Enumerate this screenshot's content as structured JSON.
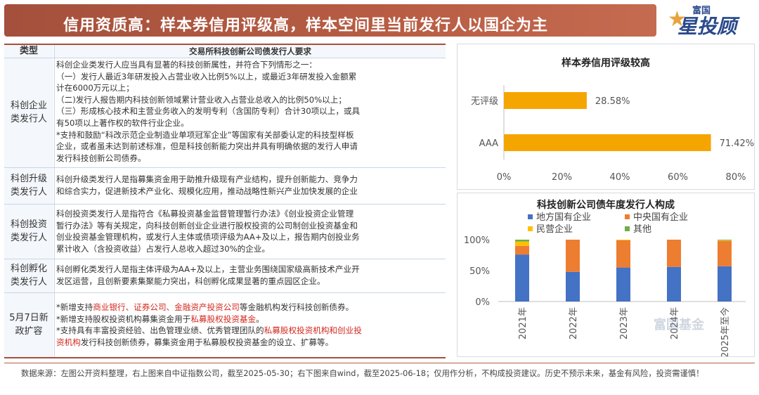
{
  "header": {
    "title": "信用资质高：样本券信用评级高，样本空间里当前发行人以国企为主"
  },
  "logo": {
    "small": "富国",
    "big": "星投顾"
  },
  "table": {
    "col_type": "类型",
    "col_req": "交易所科技创新公司债发行人要求",
    "rows": [
      {
        "type": "科创企业类发行人",
        "lines": [
          "科创企业类发行人应当具有显著的科技创新属性，并符合下列情形之一：",
          "（一）发行人最近3年研发投入占营业收入比例5%以上，或最近3年研发投入金额累",
          "计在6000万元以上；",
          "（二)发行人报告期内科技创新领域累计营业收入占营业总收入的比例50%以上；",
          "（三）形成核心技术和主营业务收入的发明专利（含国防专利）合计30项以上，或具",
          "有50项以上著作权的软件行业企业。",
          "*支持和鼓励“科改示范企业制造业单项冠军企业”等国家有关部委认定的科技型样板",
          "企业，或者虽未达到前述标准，但是科技创新能力突出并具有明确依据的发行人申请",
          "发行科技创新公司债券。"
        ]
      },
      {
        "type": "科创升级类发行人",
        "lines": [
          "科创升级类发行人是指募集资金用于助推升级现有产业结构，提升创新能力、竞争力",
          "和综合实力，促进新技术产业化、规模化应用，推动战略性新兴产业加快发展的企业"
        ]
      },
      {
        "type": "科创投资类发行人",
        "lines": [
          "科创投资类发行人是指符合《私募投资基金监督管理暂行办法》《创业投资企业管理",
          "暂行办法》等有关规定，向科技创新创业企业进行股权投资的公司制创业投资基金和",
          "创业投资基金管理机构，或发行人主体或债项评级为AA+及以上，报告期内创投业务",
          "累计收入（含投资收益）占发行人总收入超过30%的企业。"
        ]
      },
      {
        "type": "科创孵化类发行人",
        "lines": [
          "科创孵化类发行人是指主体评级为AA+及以上，主营业务围绕国家级高新技术产业开",
          "发区运营，且创新要素集聚能力突出，科创孵化成果显著的重点园区企业。"
        ]
      }
    ],
    "policy": {
      "type": "5月7日新政扩容",
      "l1_a": "*新增支持",
      "l1_red": "商业银行、证券公司、金融资产投资公司",
      "l1_b": "等金融机构发行科技创新债券。",
      "l2_a": "*新增支持股权投资机构募集资金用于",
      "l2_red": "私募股权投资基金",
      "l2_b": "。",
      "l3_a": "*支持具有丰富投资经验、出色管理业绩、优秀管理团队的",
      "l3_red1": "私募股权投资机构和创业投",
      "l4_red": "资机构",
      "l4_b": "发行科技创新债券，募集资金用于私募股权投资基金的设立、扩募等。"
    }
  },
  "chart_data": [
    {
      "type": "bar",
      "orientation": "horizontal",
      "title": "样本券信用评级较高",
      "categories": [
        "无评级",
        "AAA"
      ],
      "values": [
        28.58,
        71.42
      ],
      "value_labels": [
        "28.58%",
        "71.42%"
      ],
      "xlim": [
        0,
        80
      ],
      "xticks": [
        "0%",
        "20%",
        "40%",
        "60%",
        "80%"
      ],
      "color": "#f5a500",
      "grid": false
    },
    {
      "type": "bar",
      "stacked": true,
      "title": "科技创新公司债年度发行人构成",
      "categories": [
        "2021年",
        "2022年",
        "2023年",
        "2024年",
        "2025年至今"
      ],
      "series": [
        {
          "name": "地方国有企业",
          "color": "#4472c4",
          "values": [
            76,
            48,
            55,
            56,
            57
          ]
        },
        {
          "name": "中央国有企业",
          "color": "#ed7d31",
          "values": [
            14,
            52,
            44,
            44,
            41
          ]
        },
        {
          "name": "民营企业",
          "color": "#ffc000",
          "values": [
            7,
            0,
            1,
            0,
            1
          ]
        },
        {
          "name": "其他",
          "color": "#70ad47",
          "values": [
            3,
            0,
            0,
            0,
            1
          ]
        }
      ],
      "ylim": [
        0,
        100
      ],
      "yticks": [
        "0%",
        "50%",
        "100%"
      ],
      "legend_position": "top",
      "grid": false
    }
  ],
  "footer": {
    "text": "数据来源：左图公开资料整理，右上图来自中证指数公司，截至2025-05-30；右下图来自wind，截至2025-06-18；仅用作分析，不构成投资建议。历史不预示未来，基金有风险，投资需谨慎！"
  },
  "watermark": "富国基金"
}
